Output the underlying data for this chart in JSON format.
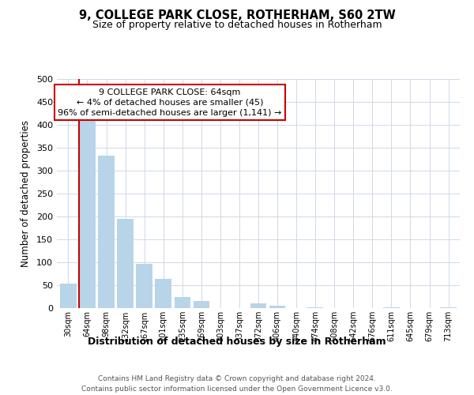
{
  "title": "9, COLLEGE PARK CLOSE, ROTHERHAM, S60 2TW",
  "subtitle": "Size of property relative to detached houses in Rotherham",
  "bar_labels": [
    "30sqm",
    "64sqm",
    "98sqm",
    "132sqm",
    "167sqm",
    "201sqm",
    "235sqm",
    "269sqm",
    "303sqm",
    "337sqm",
    "372sqm",
    "406sqm",
    "440sqm",
    "474sqm",
    "508sqm",
    "542sqm",
    "576sqm",
    "611sqm",
    "645sqm",
    "679sqm",
    "713sqm"
  ],
  "bar_values": [
    53,
    408,
    332,
    194,
    97,
    63,
    25,
    15,
    0,
    0,
    10,
    5,
    0,
    2,
    0,
    0,
    0,
    2,
    0,
    0,
    2
  ],
  "bar_color": "#b8d4e8",
  "highlight_bar_index": 1,
  "highlight_color": "#cc0000",
  "ylim": [
    0,
    500
  ],
  "yticks": [
    0,
    50,
    100,
    150,
    200,
    250,
    300,
    350,
    400,
    450,
    500
  ],
  "ylabel": "Number of detached properties",
  "xlabel": "Distribution of detached houses by size in Rotherham",
  "annotation_title": "9 COLLEGE PARK CLOSE: 64sqm",
  "annotation_line1": "← 4% of detached houses are smaller (45)",
  "annotation_line2": "96% of semi-detached houses are larger (1,141) →",
  "annotation_box_color": "#ffffff",
  "annotation_box_edgecolor": "#cc0000",
  "footer_line1": "Contains HM Land Registry data © Crown copyright and database right 2024.",
  "footer_line2": "Contains public sector information licensed under the Open Government Licence v3.0.",
  "background_color": "#ffffff",
  "grid_color": "#d0d8e8"
}
